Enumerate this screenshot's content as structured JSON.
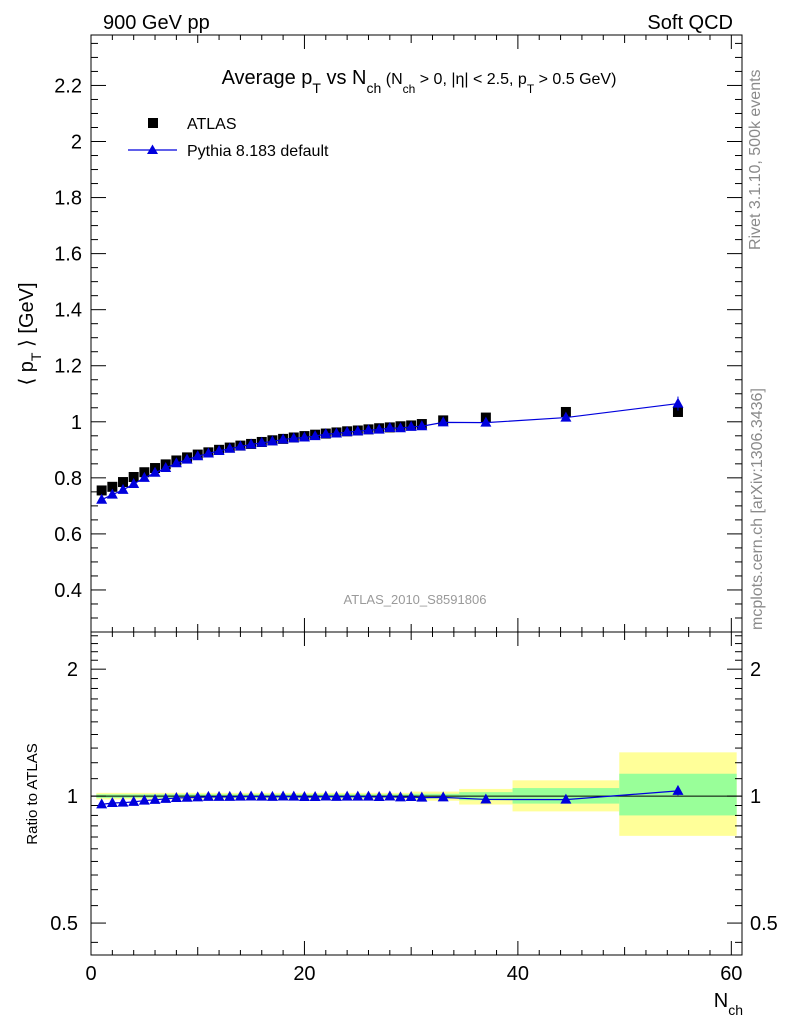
{
  "header": {
    "left": "900 GeV pp",
    "right": "Soft QCD"
  },
  "side_labels": {
    "rivet": "Rivet 3.1.10,  500k events",
    "mcplots": "mcplots.cern.ch [arXiv:1306.3436]"
  },
  "chart_data": [
    {
      "type": "scatter",
      "panel": "main",
      "title": "Average pT vs Nch (Nch > 0, |η| < 2.5, pT > 0.5 GeV)",
      "title_parts": {
        "t1": "Average p",
        "t1_sub": "T",
        "t2": " vs N",
        "t2_sub": "ch",
        "c1": " (N",
        "c1_sub": "ch",
        "c2": " > 0, |η| < 2.5, p",
        "c2_sub": "T",
        "c3": " > 0.5 GeV)"
      },
      "ylabel": "⟨ pT ⟩ [GeV]",
      "ylabel_parts": {
        "a": "⟨ p",
        "sub": "T",
        "b": " ⟩ [GeV]"
      },
      "xlim": [
        0,
        61
      ],
      "ylim": [
        0.25,
        2.38
      ],
      "yticks": [
        0.4,
        0.6,
        0.8,
        1,
        1.2,
        1.4,
        1.6,
        1.8,
        2,
        2.2
      ],
      "ytick_labels": [
        "0.4",
        "0.6",
        "0.8",
        "1",
        "1.2",
        "1.4",
        "1.6",
        "1.8",
        "2",
        "2.2"
      ],
      "watermark": "ATLAS_2010_S8591806",
      "legend_placement": "top-left",
      "series": [
        {
          "name": "ATLAS",
          "marker": "square",
          "color": "#000000",
          "x": [
            1,
            2,
            3,
            4,
            5,
            6,
            7,
            8,
            9,
            10,
            11,
            12,
            13,
            14,
            15,
            16,
            17,
            18,
            19,
            20,
            21,
            22,
            23,
            24,
            25,
            26,
            27,
            28,
            29,
            30,
            31,
            33,
            37,
            44.5,
            55
          ],
          "y": [
            0.755,
            0.768,
            0.785,
            0.803,
            0.82,
            0.835,
            0.848,
            0.862,
            0.873,
            0.883,
            0.891,
            0.9,
            0.908,
            0.915,
            0.921,
            0.928,
            0.934,
            0.939,
            0.944,
            0.949,
            0.954,
            0.958,
            0.962,
            0.966,
            0.969,
            0.973,
            0.977,
            0.98,
            0.984,
            0.987,
            0.992,
            1.005,
            1.015,
            1.035,
            1.035
          ]
        },
        {
          "name": "Pythia 8.183 default",
          "marker": "triangle",
          "color": "#0000dd",
          "x": [
            1,
            2,
            3,
            4,
            5,
            6,
            7,
            8,
            9,
            10,
            11,
            12,
            13,
            14,
            15,
            16,
            17,
            18,
            19,
            20,
            21,
            22,
            23,
            24,
            25,
            26,
            27,
            28,
            29,
            30,
            31,
            33,
            37,
            44.5,
            55
          ],
          "y": [
            0.722,
            0.74,
            0.757,
            0.778,
            0.8,
            0.818,
            0.835,
            0.852,
            0.865,
            0.877,
            0.887,
            0.896,
            0.904,
            0.912,
            0.919,
            0.925,
            0.93,
            0.937,
            0.941,
            0.944,
            0.949,
            0.956,
            0.958,
            0.963,
            0.966,
            0.97,
            0.972,
            0.978,
            0.977,
            0.982,
            0.984,
            0.998,
            0.997,
            1.015,
            1.065
          ],
          "yerr_last": 0.025
        }
      ]
    },
    {
      "type": "scatter",
      "panel": "ratio",
      "ylabel": "Ratio to ATLAS",
      "xlabel": "Nch",
      "xlabel_parts": {
        "a": "N",
        "sub": "ch"
      },
      "xlim": [
        0,
        61
      ],
      "ylog": true,
      "ylim": [
        0.42,
        2.45
      ],
      "yticks": [
        0.5,
        1,
        2
      ],
      "ytick_labels": [
        "0.5",
        "1",
        "2"
      ],
      "xticks": [
        0,
        20,
        40,
        60
      ],
      "xtick_labels": [
        "0",
        "20",
        "40",
        "60"
      ],
      "bands": [
        {
          "x0": 0.5,
          "x1": 30,
          "yellow": [
            0.982,
            1.018
          ],
          "green": [
            0.99,
            1.01
          ]
        },
        {
          "x0": 30,
          "x1": 34.5,
          "yellow": [
            0.975,
            1.025
          ],
          "green": [
            0.987,
            1.013
          ]
        },
        {
          "x0": 34.5,
          "x1": 39.5,
          "yellow": [
            0.955,
            1.04
          ],
          "green": [
            0.978,
            1.022
          ]
        },
        {
          "x0": 39.5,
          "x1": 49.5,
          "yellow": [
            0.92,
            1.09
          ],
          "green": [
            0.96,
            1.045
          ]
        },
        {
          "x0": 49.5,
          "x1": 60.5,
          "yellow": [
            0.805,
            1.27
          ],
          "green": [
            0.9,
            1.13
          ]
        }
      ],
      "series": [
        {
          "name": "Pythia 8.183 default / ATLAS",
          "marker": "triangle",
          "color": "#0000dd",
          "x": [
            1,
            2,
            3,
            4,
            5,
            6,
            7,
            8,
            9,
            10,
            11,
            12,
            13,
            14,
            15,
            16,
            17,
            18,
            19,
            20,
            21,
            22,
            23,
            24,
            25,
            26,
            27,
            28,
            29,
            30,
            31,
            33,
            37,
            44.5,
            55
          ],
          "y": [
            0.956,
            0.963,
            0.965,
            0.969,
            0.976,
            0.98,
            0.985,
            0.99,
            0.991,
            0.993,
            0.996,
            0.996,
            0.996,
            0.997,
            0.998,
            0.997,
            0.996,
            0.998,
            0.997,
            0.995,
            0.995,
            0.998,
            0.996,
            0.997,
            0.997,
            0.997,
            0.995,
            0.998,
            0.993,
            0.995,
            0.992,
            0.993,
            0.982,
            0.981,
            1.029
          ],
          "yerr_last": 0.025
        }
      ]
    }
  ]
}
